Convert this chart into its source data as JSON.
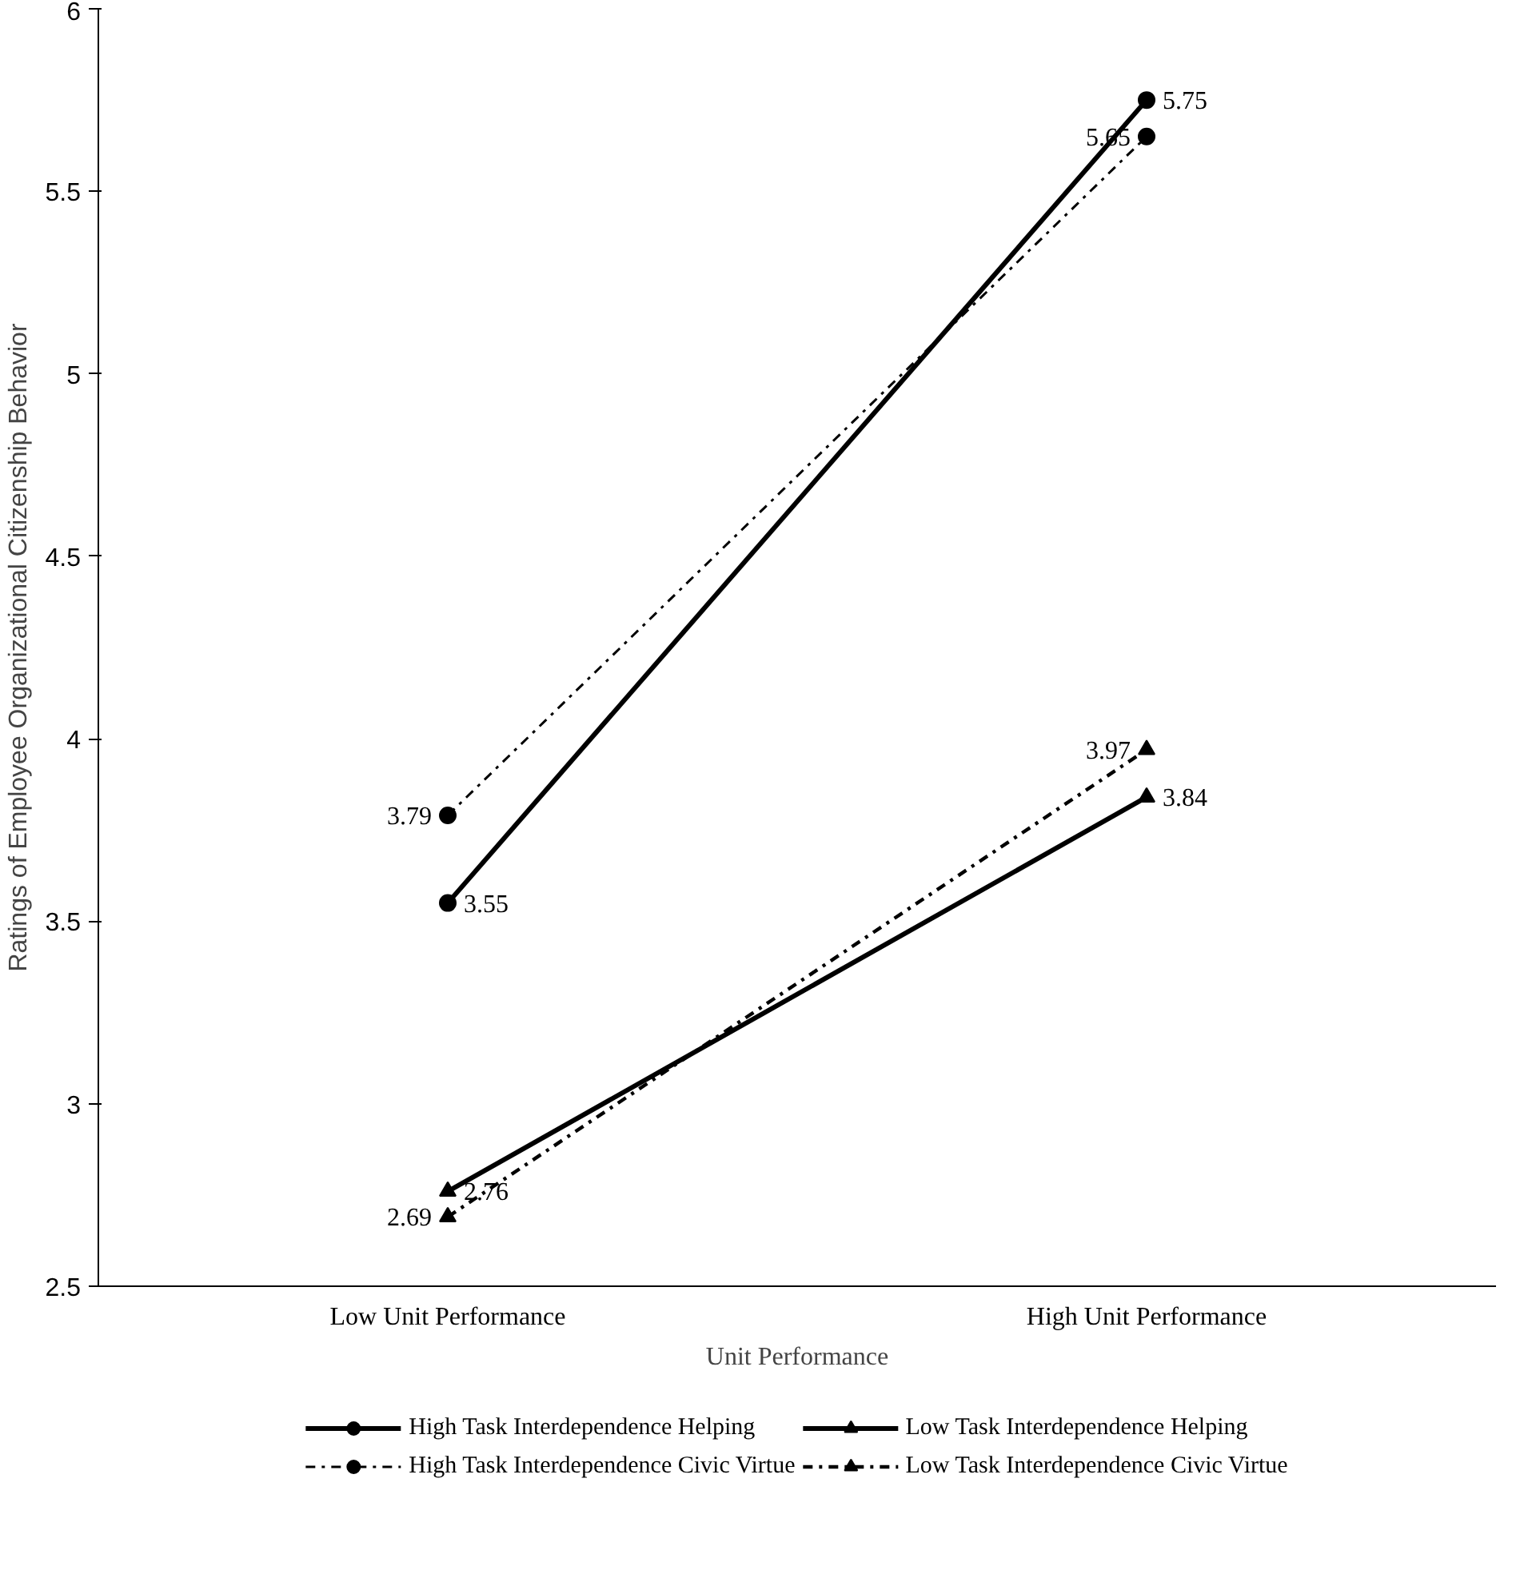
{
  "chart_data": {
    "type": "line",
    "xlabel": "Unit Performance",
    "ylabel": "Ratings of Employee Organizational Citizenship Behavior",
    "categories": [
      "Low Unit Performance",
      "High Unit Performance"
    ],
    "ylim": [
      2.5,
      6
    ],
    "yticks": [
      2.5,
      3,
      3.5,
      4,
      4.5,
      5,
      5.5,
      6
    ],
    "series": [
      {
        "name": "High Task Interdependence Helping",
        "color": "#000000",
        "values": [
          3.55,
          5.75
        ],
        "marker": "circle",
        "line_style": "solid"
      },
      {
        "name": "High Task Interdependence Civic Virtue",
        "color": "#000000",
        "values": [
          3.79,
          5.65
        ],
        "marker": "circle",
        "line_style": "dashdot"
      },
      {
        "name": "Low Task Interdependence Helping",
        "color": "#000000",
        "values": [
          2.76,
          3.84
        ],
        "marker": "triangle",
        "line_style": "solid"
      },
      {
        "name": "Low Task Interdependence Civic Virtue",
        "color": "#000000",
        "values": [
          2.69,
          3.97
        ],
        "marker": "triangle",
        "line_style": "dashdot"
      }
    ],
    "data_labels": true,
    "grid": false,
    "legend": "bottom"
  }
}
